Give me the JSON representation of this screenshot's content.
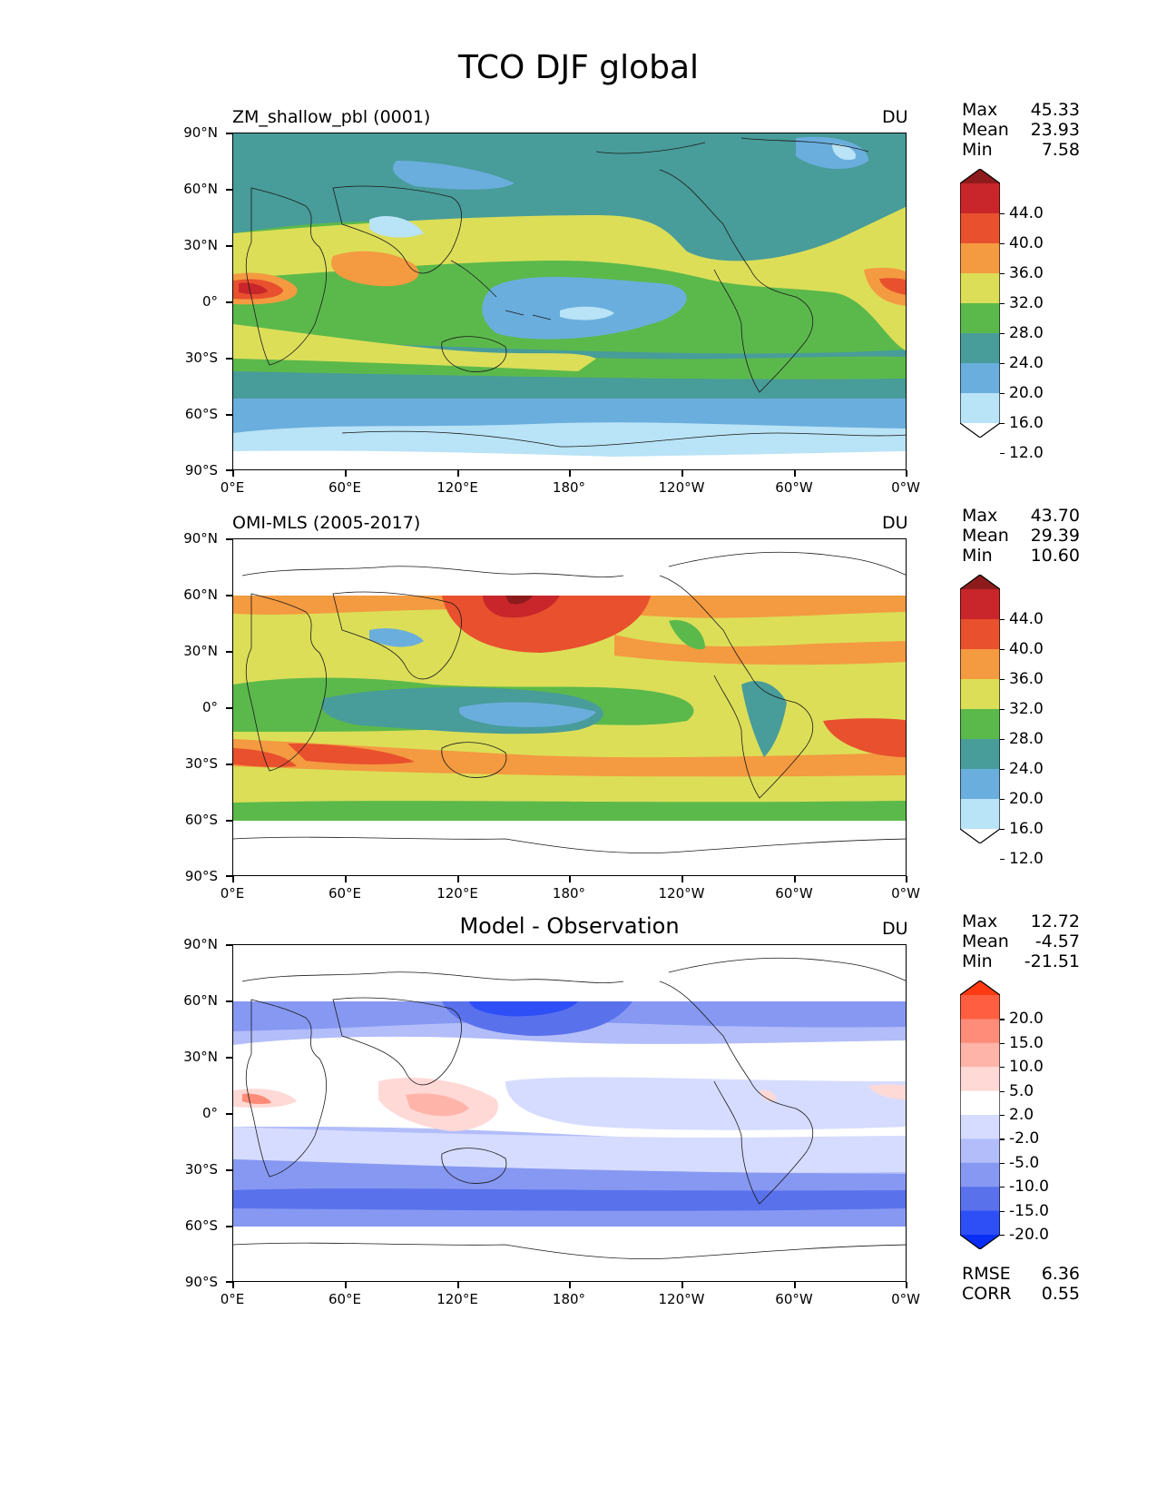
{
  "title": "TCO DJF global",
  "x_ticks": [
    "0°E",
    "60°E",
    "120°E",
    "180°",
    "120°W",
    "60°W",
    "0°W"
  ],
  "y_ticks": [
    "90°N",
    "60°N",
    "30°N",
    "0°",
    "30°S",
    "60°S",
    "90°S"
  ],
  "panels": [
    {
      "left_title": "ZM_shallow_pbl (0001)",
      "units": "DU",
      "stats": [
        {
          "label": "Max",
          "value": "45.33"
        },
        {
          "label": "Mean",
          "value": "23.93"
        },
        {
          "label": "Min",
          "value": "7.58"
        }
      ],
      "colorbar": {
        "labels": [
          "44.0",
          "40.0",
          "36.0",
          "32.0",
          "28.0",
          "24.0",
          "20.0",
          "16.0",
          "12.0"
        ],
        "colors": [
          "#8e1b1c",
          "#c8262a",
          "#e8502e",
          "#f49a40",
          "#dcde58",
          "#5bb94b",
          "#489c9a",
          "#6aaedd",
          "#b9e3f6",
          "#ffffff"
        ]
      }
    },
    {
      "left_title": "OMI-MLS (2005-2017)",
      "units": "DU",
      "stats": [
        {
          "label": "Max",
          "value": "43.70"
        },
        {
          "label": "Mean",
          "value": "29.39"
        },
        {
          "label": "Min",
          "value": "10.60"
        }
      ],
      "colorbar": {
        "labels": [
          "44.0",
          "40.0",
          "36.0",
          "32.0",
          "28.0",
          "24.0",
          "20.0",
          "16.0",
          "12.0"
        ],
        "colors": [
          "#8e1b1c",
          "#c8262a",
          "#e8502e",
          "#f49a40",
          "#dcde58",
          "#5bb94b",
          "#489c9a",
          "#6aaedd",
          "#b9e3f6",
          "#ffffff"
        ]
      }
    },
    {
      "center_title": "Model - Observation",
      "units": "DU",
      "stats": [
        {
          "label": "Max",
          "value": "12.72"
        },
        {
          "label": "Mean",
          "value": "-4.57"
        },
        {
          "label": "Min",
          "value": "-21.51"
        }
      ],
      "extra_stats": [
        {
          "label": "RMSE",
          "value": "6.36"
        },
        {
          "label": "CORR",
          "value": "0.55"
        }
      ],
      "colorbar": {
        "labels": [
          "20.0",
          "15.0",
          "10.0",
          "5.0",
          "2.0",
          "-2.0",
          "-5.0",
          "-10.0",
          "-15.0",
          "-20.0"
        ],
        "colors": [
          "#ff3a12",
          "#ff5e40",
          "#ff8c78",
          "#ffb4aa",
          "#ffd9d6",
          "#ffffff",
          "#d6dcff",
          "#b2bdfa",
          "#8698f2",
          "#5a71ec",
          "#2f4ff6",
          "#0a2ef5"
        ]
      }
    }
  ]
}
